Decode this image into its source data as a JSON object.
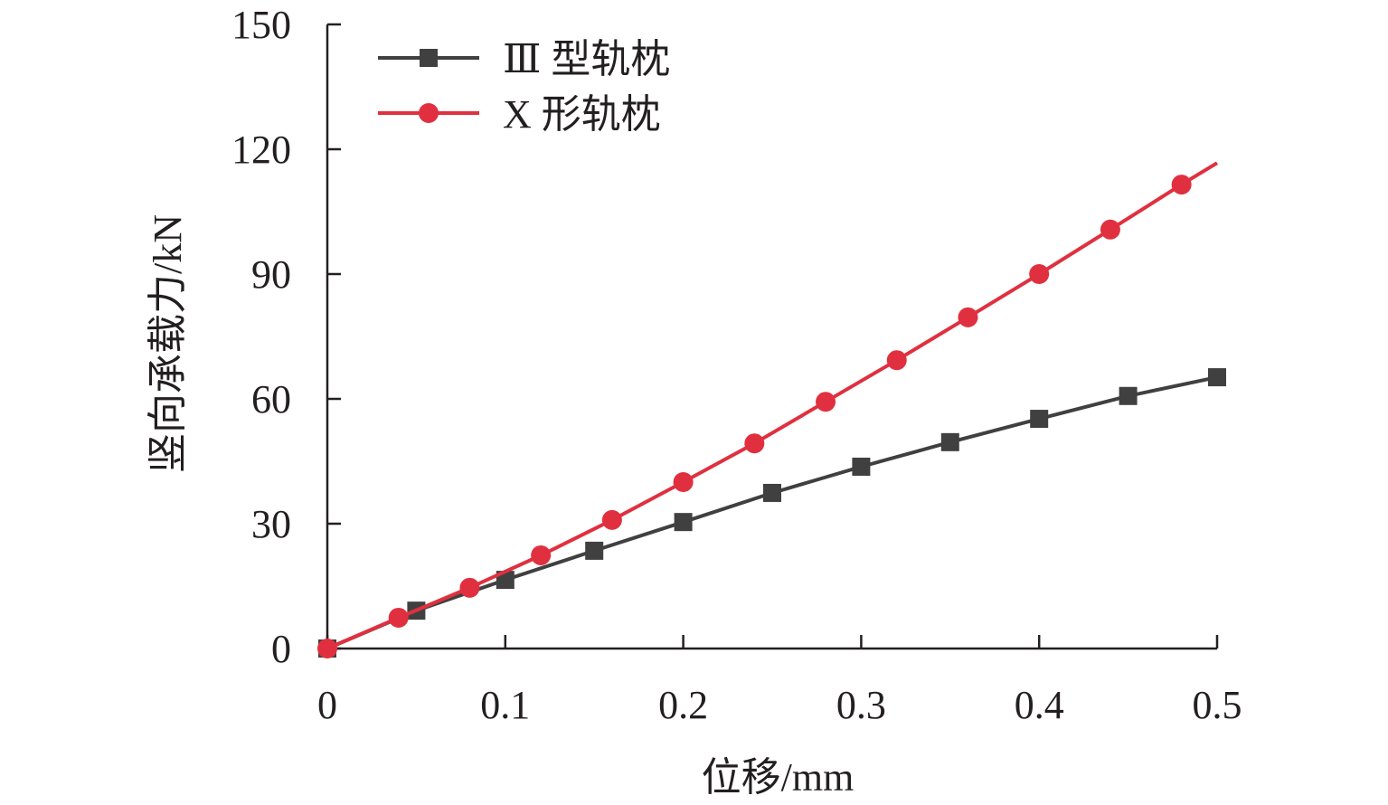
{
  "chart_data": {
    "type": "line",
    "title": "",
    "xlabel": "位移/mm",
    "ylabel": "竖向承载力/kN",
    "xlim": [
      0,
      0.5
    ],
    "ylim": [
      0,
      150
    ],
    "xticks": [
      "0",
      "0.1",
      "0.2",
      "0.3",
      "0.4",
      "0.5"
    ],
    "yticks": [
      "0",
      "30",
      "60",
      "90",
      "120",
      "150"
    ],
    "grid": false,
    "legend_position": "top-left",
    "series": [
      {
        "name": "Ⅲ 型轨枕",
        "color": "#404040",
        "marker": "square",
        "x": [
          0,
          0.05,
          0.1,
          0.15,
          0.2,
          0.25,
          0.3,
          0.35,
          0.4,
          0.45,
          0.5
        ],
        "y": [
          0,
          9.1,
          16.5,
          23.5,
          30.4,
          37.4,
          43.7,
          49.6,
          55.2,
          60.7,
          65.2
        ]
      },
      {
        "name": "X 形轨枕",
        "color": "#e0303f",
        "marker": "circle",
        "x": [
          0,
          0.04,
          0.08,
          0.12,
          0.16,
          0.2,
          0.24,
          0.28,
          0.32,
          0.36,
          0.4,
          0.44,
          0.48,
          0.5
        ],
        "y": [
          0,
          7.4,
          14.6,
          22.4,
          30.9,
          40,
          49.3,
          59.3,
          69.3,
          79.6,
          90,
          100.7,
          111.5,
          116.7
        ],
        "marked_points": 13
      }
    ]
  }
}
